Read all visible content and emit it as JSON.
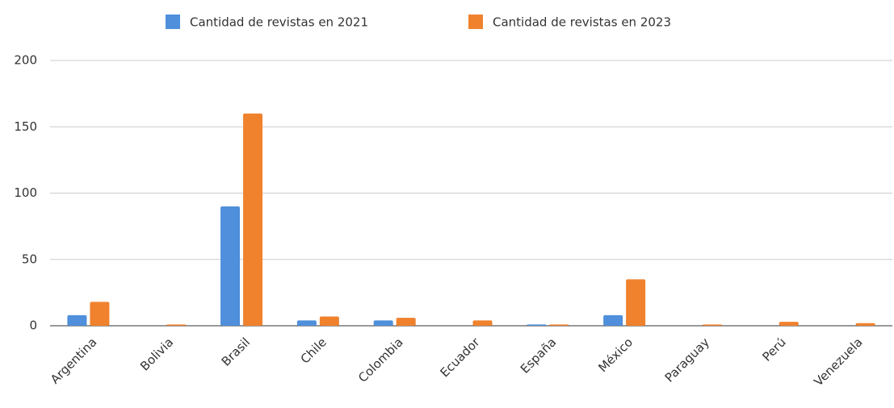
{
  "chart_data": {
    "type": "bar",
    "categories": [
      "Argentina",
      "Bolivia",
      "Brasil",
      "Chile",
      "Colombia",
      "Ecuador",
      "España",
      "México",
      "Paraguay",
      "Perú",
      "Venezuela"
    ],
    "series": [
      {
        "name": "Cantidad de revistas en 2021",
        "color": "#4f8fdb",
        "values": [
          8,
          0,
          90,
          4,
          4,
          0,
          1,
          8,
          0,
          0,
          0
        ]
      },
      {
        "name": "Cantidad de revistas en 2023",
        "color": "#f0822e",
        "values": [
          18,
          1,
          160,
          7,
          6,
          4,
          1,
          35,
          1,
          3,
          2
        ]
      }
    ],
    "ylim": [
      0,
      200
    ],
    "yticks": [
      0,
      50,
      100,
      150,
      200
    ],
    "grid": true,
    "legend": "top"
  }
}
